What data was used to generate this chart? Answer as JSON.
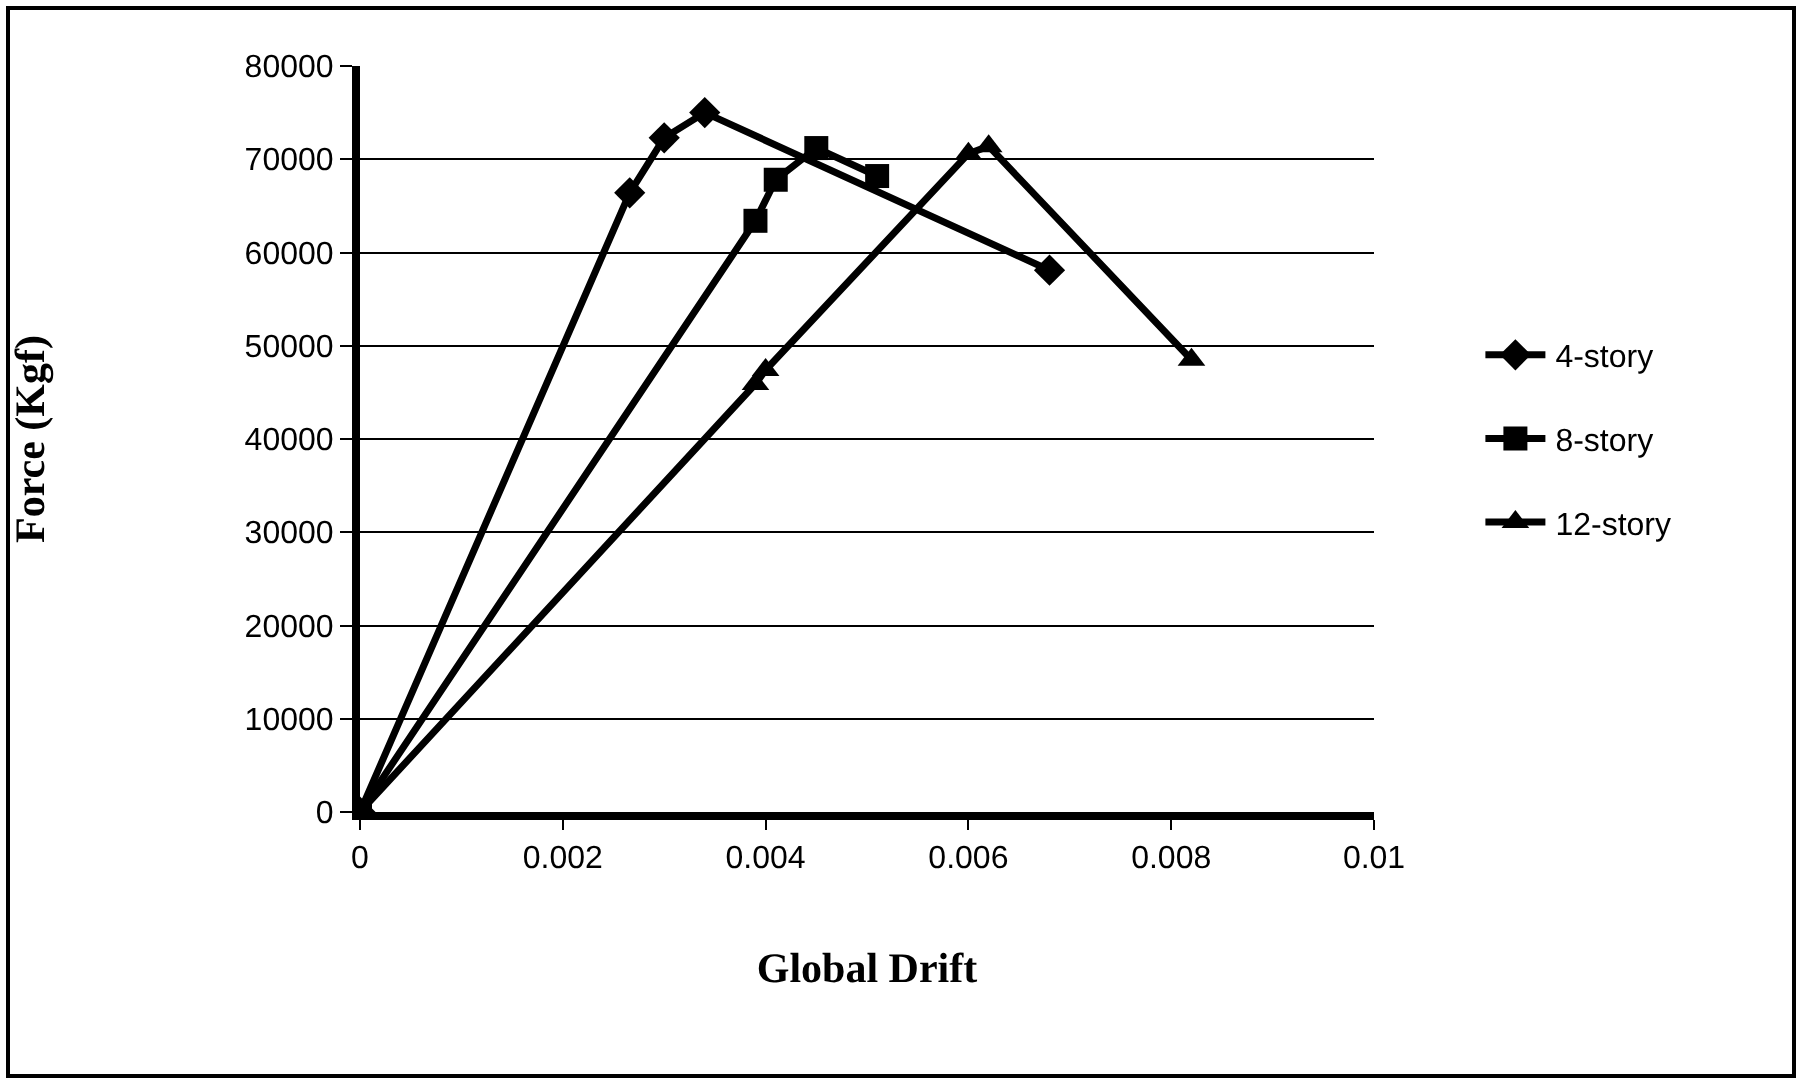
{
  "chart_data": {
    "type": "line",
    "xlabel": "Global Drift",
    "ylabel": "Force (Kgf)",
    "xlim": [
      0,
      0.01
    ],
    "xticks": [
      0,
      0.002,
      0.004,
      0.006,
      0.008,
      0.01
    ],
    "ylim": [
      0,
      80000
    ],
    "yticks": [
      0,
      10000,
      20000,
      30000,
      40000,
      50000,
      60000,
      70000,
      80000
    ],
    "grid": "y",
    "legend": "right",
    "line_style": "solid",
    "series": [
      {
        "name": "4-story",
        "marker": "diamond",
        "color": "#000000",
        "x": [
          0,
          0.00266,
          0.003,
          0.0034,
          0.0068
        ],
        "values": [
          0,
          66400,
          72300,
          75000,
          58100
        ]
      },
      {
        "name": "8-story",
        "marker": "square",
        "color": "#000000",
        "x": [
          0,
          0.0039,
          0.0041,
          0.0045,
          0.0051
        ],
        "values": [
          0,
          63400,
          67800,
          71200,
          68200
        ]
      },
      {
        "name": "12-story",
        "marker": "triangle",
        "color": "#000000",
        "x": [
          0,
          0.0039,
          0.004,
          0.006,
          0.0062,
          0.0082
        ],
        "values": [
          0,
          45900,
          47400,
          70600,
          71400,
          48500
        ]
      }
    ]
  }
}
